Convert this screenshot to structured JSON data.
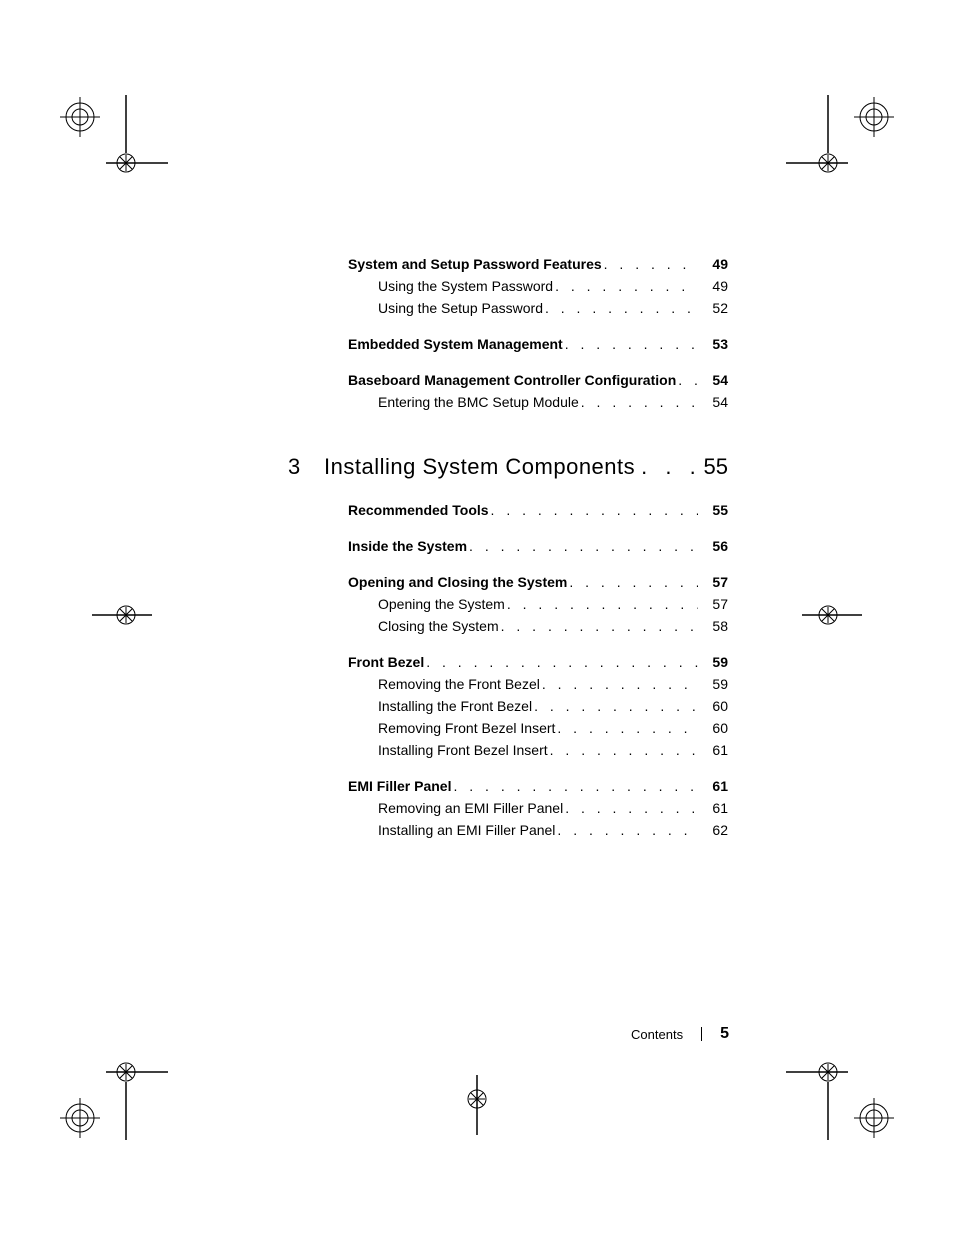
{
  "colors": {
    "text": "#000000",
    "background": "#ffffff"
  },
  "typography": {
    "body_font_size": 14,
    "chapter_font_size": 22,
    "footer_label_size": 13,
    "footer_page_size": 16
  },
  "toc": {
    "sections_before_chapter": [
      {
        "label": "System and Setup Password Features",
        "page": "49",
        "level": 1,
        "bold": true
      },
      {
        "label": "Using the System Password",
        "page": "49",
        "level": 2,
        "bold": false
      },
      {
        "label": "Using the Setup Password",
        "page": "52",
        "level": 2,
        "bold": false
      }
    ],
    "section_embedded": [
      {
        "label": "Embedded System Management",
        "page": "53",
        "level": 1,
        "bold": true
      }
    ],
    "section_bmc": [
      {
        "label": "Baseboard Management Controller Configuration",
        "page": "54",
        "level": 1,
        "bold": true
      },
      {
        "label": "Entering the BMC Setup Module",
        "page": "54",
        "level": 2,
        "bold": false
      }
    ],
    "chapter": {
      "number": "3",
      "title": "Installing System Components",
      "page": "55"
    },
    "sections_after_chapter": [
      [
        {
          "label": "Recommended Tools",
          "page": "55",
          "level": 1,
          "bold": true
        }
      ],
      [
        {
          "label": "Inside the System",
          "page": "56",
          "level": 1,
          "bold": true
        }
      ],
      [
        {
          "label": "Opening and Closing the System",
          "page": "57",
          "level": 1,
          "bold": true
        },
        {
          "label": "Opening the System",
          "page": "57",
          "level": 2,
          "bold": false
        },
        {
          "label": "Closing the System",
          "page": "58",
          "level": 2,
          "bold": false
        }
      ],
      [
        {
          "label": "Front Bezel",
          "page": "59",
          "level": 1,
          "bold": true
        },
        {
          "label": "Removing the Front Bezel",
          "page": "59",
          "level": 2,
          "bold": false
        },
        {
          "label": "Installing the Front Bezel",
          "page": "60",
          "level": 2,
          "bold": false
        },
        {
          "label": "Removing Front Bezel Insert",
          "page": "60",
          "level": 2,
          "bold": false
        },
        {
          "label": "Installing Front Bezel Insert",
          "page": "61",
          "level": 2,
          "bold": false
        }
      ],
      [
        {
          "label": "EMI Filler Panel",
          "page": "61",
          "level": 1,
          "bold": true
        },
        {
          "label": "Removing an EMI Filler Panel",
          "page": "61",
          "level": 2,
          "bold": false
        },
        {
          "label": "Installing an EMI Filler Panel",
          "page": "62",
          "level": 2,
          "bold": false
        }
      ]
    ]
  },
  "footer": {
    "label": "Contents",
    "page": "5"
  },
  "crop_marks": {
    "positions": [
      "top-left",
      "top-right",
      "bottom-left",
      "bottom-right",
      "mid-left",
      "mid-right",
      "bottom-center"
    ]
  }
}
